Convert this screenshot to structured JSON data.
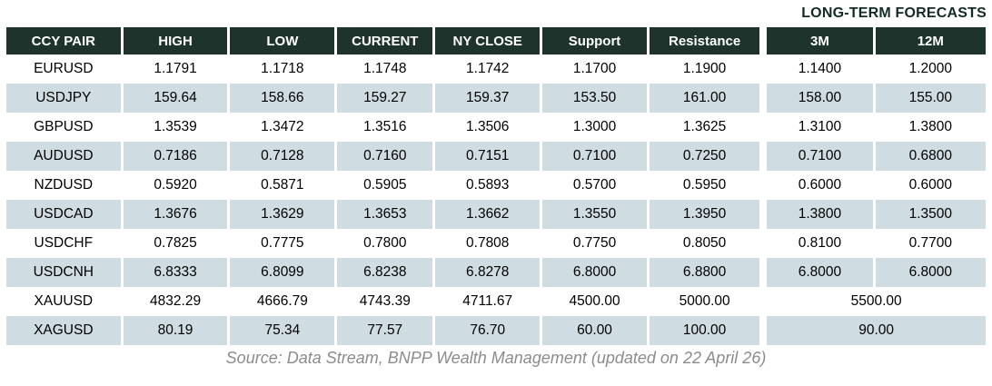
{
  "title": "LONG-TERM FORECASTS",
  "table": {
    "headers": [
      "CCY PAIR",
      "HIGH",
      "LOW",
      "CURRENT",
      "NY CLOSE",
      "Support",
      "Resistance",
      "3M",
      "12M"
    ],
    "rows": [
      {
        "values": [
          "EURUSD",
          "1.1791",
          "1.1718",
          "1.1748",
          "1.1742",
          "1.1700",
          "1.1900",
          "1.1400",
          "1.2000"
        ],
        "last_colspan": 1
      },
      {
        "values": [
          "USDJPY",
          "159.64",
          "158.66",
          "159.27",
          "159.37",
          "153.50",
          "161.00",
          "158.00",
          "155.00"
        ],
        "last_colspan": 1
      },
      {
        "values": [
          "GBPUSD",
          "1.3539",
          "1.3472",
          "1.3516",
          "1.3506",
          "1.3000",
          "1.3625",
          "1.3100",
          "1.3800"
        ],
        "last_colspan": 1
      },
      {
        "values": [
          "AUDUSD",
          "0.7186",
          "0.7128",
          "0.7160",
          "0.7151",
          "0.7100",
          "0.7250",
          "0.7100",
          "0.6800"
        ],
        "last_colspan": 1
      },
      {
        "values": [
          "NZDUSD",
          "0.5920",
          "0.5871",
          "0.5905",
          "0.5893",
          "0.5700",
          "0.5950",
          "0.6000",
          "0.6000"
        ],
        "last_colspan": 1
      },
      {
        "values": [
          "USDCAD",
          "1.3676",
          "1.3629",
          "1.3653",
          "1.3662",
          "1.3550",
          "1.3950",
          "1.3800",
          "1.3500"
        ],
        "last_colspan": 1
      },
      {
        "values": [
          "USDCHF",
          "0.7825",
          "0.7775",
          "0.7800",
          "0.7808",
          "0.7750",
          "0.8050",
          "0.8100",
          "0.7700"
        ],
        "last_colspan": 1
      },
      {
        "values": [
          "USDCNH",
          "6.8333",
          "6.8099",
          "6.8238",
          "6.8278",
          "6.8000",
          "6.8800",
          "6.8000",
          "6.8000"
        ],
        "last_colspan": 1
      },
      {
        "values": [
          "XAUUSD",
          "4832.29",
          "4666.79",
          "4743.39",
          "4711.67",
          "4500.00",
          "5000.00",
          "5500.00"
        ],
        "last_colspan": 2
      },
      {
        "values": [
          "XAGUSD",
          "80.19",
          "75.34",
          "77.57",
          "76.70",
          "60.00",
          "100.00",
          "90.00"
        ],
        "last_colspan": 2
      }
    ]
  },
  "footer": {
    "source": "Source: Data Stream, BNPP Wealth Management (updated on 22 April 26)"
  },
  "colors": {
    "header_bg": "#1d332c",
    "alt_row_bg": "#cfdce2",
    "title_text": "#122b26",
    "source_text": "#8c8c8c",
    "body_text": "#000000"
  }
}
